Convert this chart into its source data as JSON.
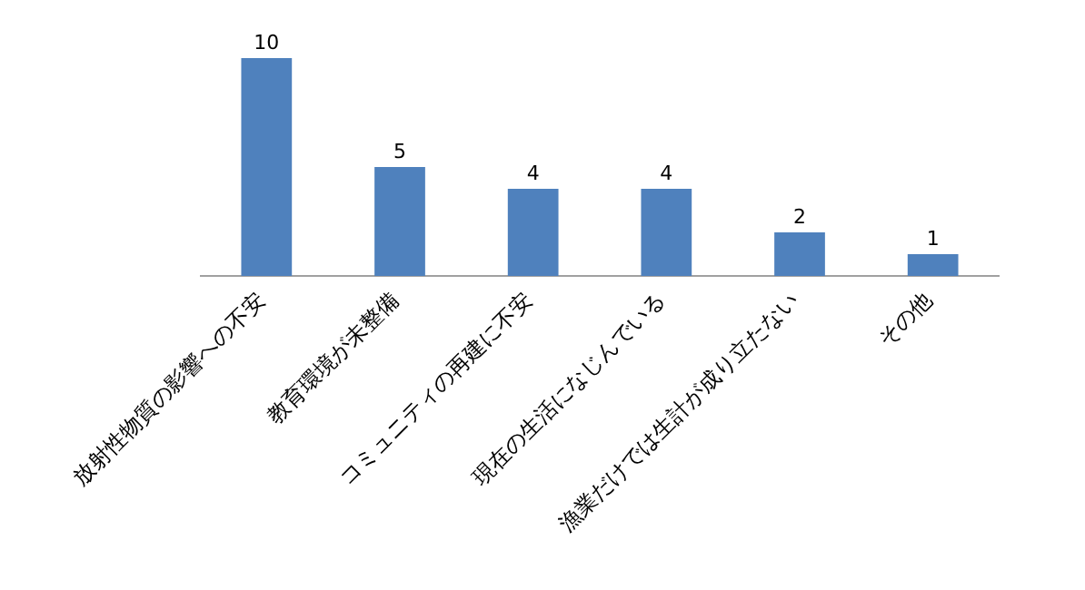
{
  "chart_data": {
    "type": "bar",
    "categories": [
      "放射性物質の影響への不安",
      "教育環境が未整備",
      "コミュニティの再建に不安",
      "現在の生活になじんでいる",
      "漁業だけでは生計が成り立たない",
      "その他"
    ],
    "values": [
      10,
      5,
      4,
      4,
      2,
      1
    ],
    "color": "#4f81bd",
    "data_labels": true
  }
}
